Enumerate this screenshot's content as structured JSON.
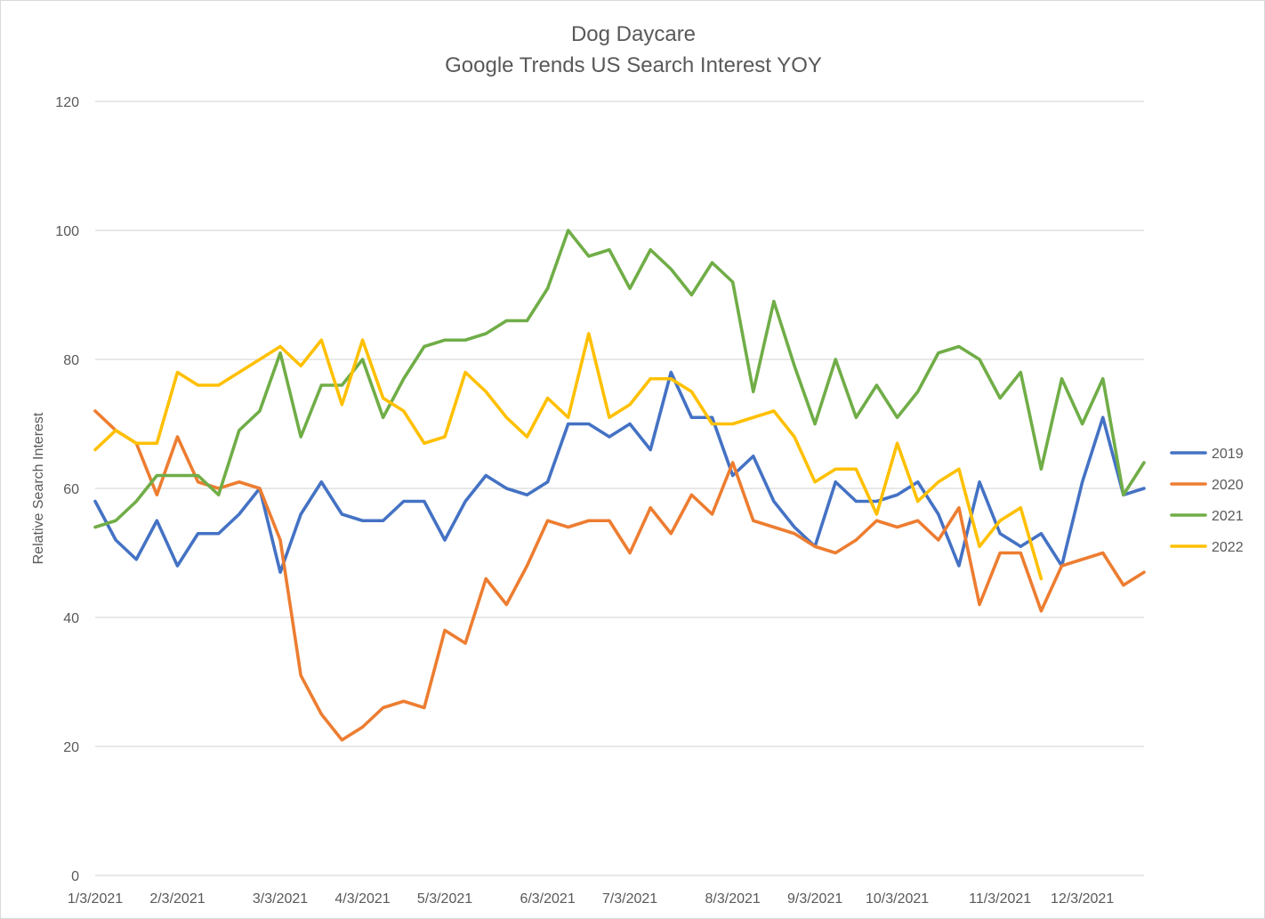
{
  "chart_data": {
    "type": "line",
    "title": "Dog Daycare",
    "subtitle": "Google Trends US Search Interest YOY",
    "xlabel": "",
    "ylabel": "Relative Search Interest",
    "ylim": [
      0,
      120
    ],
    "yticks": [
      0,
      20,
      40,
      60,
      80,
      100,
      120
    ],
    "grid": true,
    "legend_position": "right",
    "x_tick_labels": [
      "1/3/2021",
      "2/3/2021",
      "3/3/2021",
      "4/3/2021",
      "5/3/2021",
      "6/3/2021",
      "7/3/2021",
      "8/3/2021",
      "9/3/2021",
      "10/3/2021",
      "11/3/2021",
      "12/3/2021"
    ],
    "x_tick_week_index": [
      0,
      4,
      9,
      13,
      17,
      22,
      26,
      31,
      35,
      39,
      44,
      48
    ],
    "series": [
      {
        "name": "2019",
        "color": "#4472C4",
        "values": [
          58,
          52,
          49,
          55,
          48,
          53,
          53,
          56,
          60,
          47,
          56,
          61,
          56,
          55,
          55,
          58,
          58,
          52,
          58,
          62,
          60,
          59,
          61,
          70,
          70,
          68,
          70,
          66,
          78,
          71,
          71,
          62,
          65,
          58,
          54,
          51,
          61,
          58,
          58,
          59,
          61,
          56,
          48,
          61,
          53,
          51,
          53,
          48,
          61,
          71,
          59,
          60
        ]
      },
      {
        "name": "2020",
        "color": "#ED7D31",
        "values": [
          72,
          69,
          67,
          59,
          68,
          61,
          60,
          61,
          60,
          52,
          31,
          25,
          21,
          23,
          26,
          27,
          26,
          38,
          36,
          46,
          42,
          48,
          55,
          54,
          55,
          55,
          50,
          57,
          53,
          59,
          56,
          64,
          55,
          54,
          53,
          51,
          50,
          52,
          55,
          54,
          55,
          52,
          57,
          42,
          50,
          50,
          41,
          48,
          49,
          50,
          45,
          47
        ]
      },
      {
        "name": "2021",
        "color": "#70AD47",
        "values": [
          54,
          55,
          58,
          62,
          62,
          62,
          59,
          69,
          72,
          81,
          68,
          76,
          76,
          80,
          71,
          77,
          82,
          83,
          83,
          84,
          86,
          86,
          91,
          100,
          96,
          97,
          91,
          97,
          94,
          90,
          95,
          92,
          75,
          89,
          79,
          70,
          80,
          71,
          76,
          71,
          75,
          81,
          82,
          80,
          74,
          78,
          63,
          77,
          70,
          77,
          59,
          64
        ]
      },
      {
        "name": "2022",
        "color": "#FFC000",
        "values": [
          66,
          69,
          67,
          67,
          78,
          76,
          76,
          78,
          80,
          82,
          79,
          83,
          73,
          83,
          74,
          72,
          67,
          68,
          78,
          75,
          71,
          68,
          74,
          71,
          84,
          71,
          73,
          77,
          77,
          75,
          70,
          70,
          71,
          72,
          68,
          61,
          63,
          63,
          56,
          67,
          58,
          61,
          63,
          51,
          55,
          57,
          46
        ]
      }
    ]
  }
}
